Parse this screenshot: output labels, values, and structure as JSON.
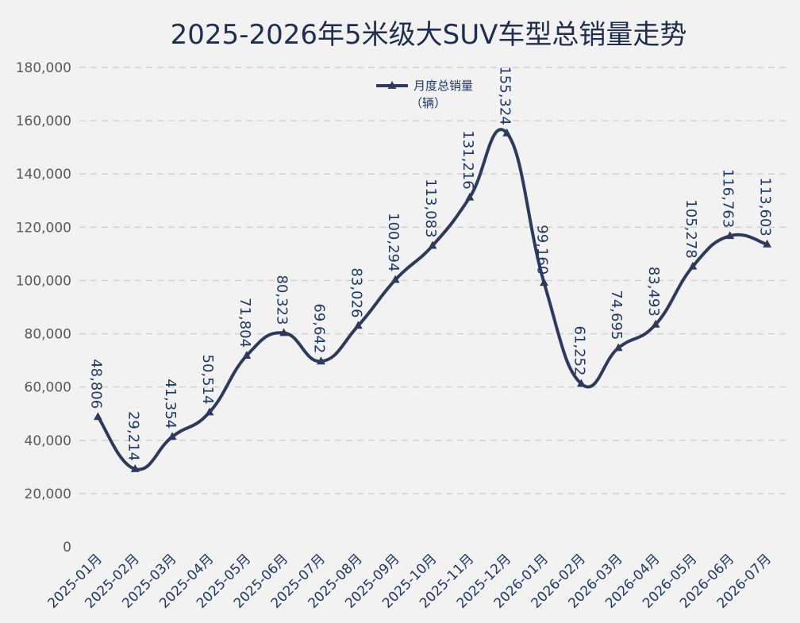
{
  "colors": {
    "series": "#2e3a5c",
    "background": "#f2f2f2",
    "grid": "#cfcfcf",
    "title": "#1f2d4f"
  },
  "chart_data": {
    "type": "line",
    "title": "2025-2026年5米级大SUV车型总销量走势",
    "xlabel": "",
    "ylabel": "",
    "categories": [
      "2025-01月",
      "2025-02月",
      "2025-03月",
      "2025-04月",
      "2025-05月",
      "2025-06月",
      "2025-07月",
      "2025-08月",
      "2025-09月",
      "2025-10月",
      "2025-11月",
      "2025-12月",
      "2026-01月",
      "2026-02月",
      "2026-03月",
      "2026-04月",
      "2026-05月",
      "2026-06月",
      "2026-07月"
    ],
    "series": [
      {
        "name": "月度总销量（辆）",
        "legend_lines": [
          "月度总销量",
          "（辆）"
        ],
        "marker": "triangle",
        "smooth": true,
        "values": [
          48806,
          29214,
          41354,
          50514,
          71804,
          80323,
          69642,
          83026,
          100294,
          113083,
          131216,
          155324,
          99160,
          61252,
          74695,
          83493,
          105278,
          116763,
          113603
        ],
        "labels": [
          "48,806",
          "29,214",
          "41,354",
          "50,514",
          "71,804",
          "80,323",
          "69,642",
          "83,026",
          "100,294",
          "113,083",
          "131,216",
          "155,324",
          "99,160",
          "61,252",
          "74,695",
          "83,493",
          "105,278",
          "116,763",
          "113,603"
        ]
      }
    ],
    "ylim": [
      0,
      180000
    ],
    "yticks": [
      0,
      20000,
      40000,
      60000,
      80000,
      100000,
      120000,
      140000,
      160000,
      180000
    ],
    "ytick_labels": [
      "0",
      "20,000",
      "40,000",
      "60,000",
      "80,000",
      "100,000",
      "120,000",
      "140,000",
      "160,000",
      "180,000"
    ],
    "grid": true,
    "legend_position": "top-center"
  }
}
